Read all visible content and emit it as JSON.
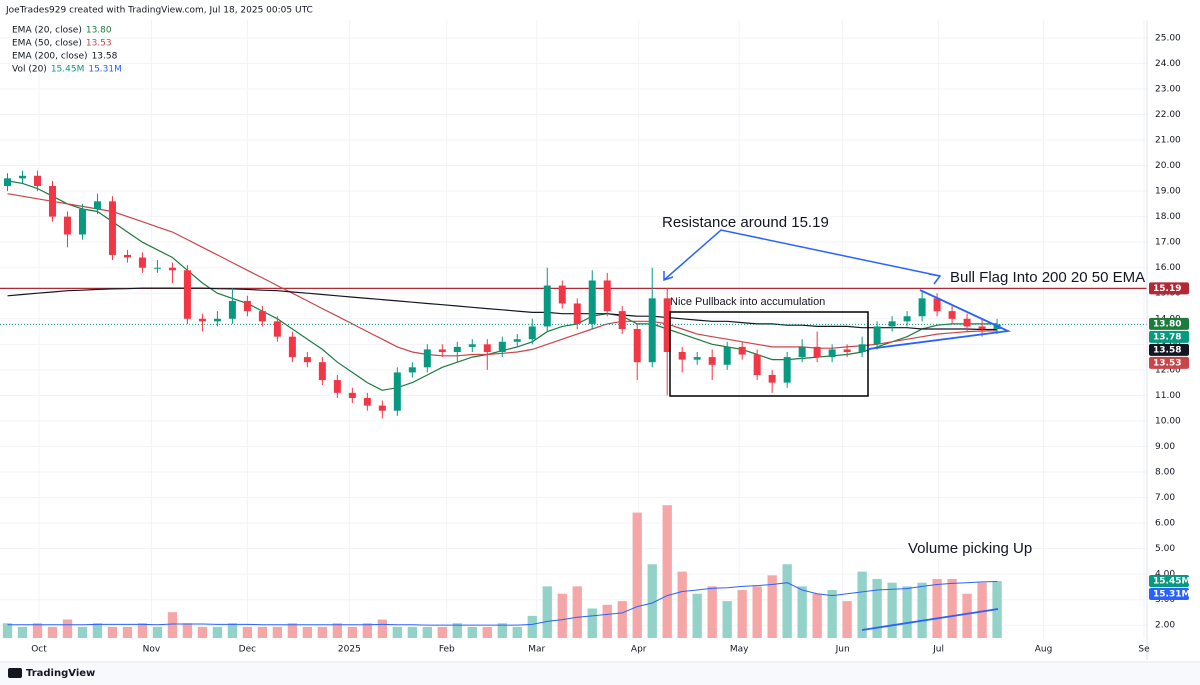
{
  "header": "JoeTrades929 created with TradingView.com, Jul 18, 2025 00:05 UTC",
  "brand": "TradingView",
  "chart_data": {
    "type": "candlestick",
    "xlim": [
      -0.5,
      76
    ],
    "xticks": [
      {
        "value": 2.1,
        "label": "Oct"
      },
      {
        "value": 9.6,
        "label": "Nov"
      },
      {
        "value": 16,
        "label": "Dec"
      },
      {
        "value": 22.8,
        "label": "2025"
      },
      {
        "value": 29.3,
        "label": "Feb"
      },
      {
        "value": 35.3,
        "label": "Mar"
      },
      {
        "value": 42.1,
        "label": "Apr"
      },
      {
        "value": 48.8,
        "label": "May"
      },
      {
        "value": 55.7,
        "label": "Jun"
      },
      {
        "value": 62.1,
        "label": "Jul"
      },
      {
        "value": 69.1,
        "label": "Aug"
      },
      {
        "value": 75.8,
        "label": "Se"
      }
    ],
    "ylim": [
      1.5,
      25.7
    ],
    "yticks": [
      {
        "value": 2,
        "label": "2.00"
      },
      {
        "value": 3,
        "label": "3.00"
      },
      {
        "value": 4,
        "label": "4.00"
      },
      {
        "value": 5,
        "label": "5.00"
      },
      {
        "value": 6,
        "label": "6.00"
      },
      {
        "value": 7,
        "label": "7.00"
      },
      {
        "value": 8,
        "label": "8.00"
      },
      {
        "value": 9,
        "label": "9.00"
      },
      {
        "value": 10,
        "label": "10.00"
      },
      {
        "value": 11,
        "label": "11.00"
      },
      {
        "value": 12,
        "label": "12.00"
      },
      {
        "value": 13,
        "label": "13.00"
      },
      {
        "value": 14,
        "label": "14.00"
      },
      {
        "value": 15,
        "label": "15.00"
      },
      {
        "value": 16,
        "label": "16.00"
      },
      {
        "value": 17,
        "label": "17.00"
      },
      {
        "value": 18,
        "label": "18.00"
      },
      {
        "value": 19,
        "label": "19.00"
      },
      {
        "value": 20,
        "label": "20.00"
      },
      {
        "value": 21,
        "label": "21.00"
      },
      {
        "value": 22,
        "label": "22.00"
      },
      {
        "value": 23,
        "label": "23.00"
      },
      {
        "value": 24,
        "label": "24.00"
      },
      {
        "value": 25,
        "label": "25.00"
      }
    ],
    "grid": true,
    "up_color": "#089981",
    "down_color": "#f23645",
    "open": [
      19.2,
      19.5,
      19.6,
      19.2,
      18.0,
      17.3,
      18.3,
      18.6,
      16.5,
      16.4,
      16.0,
      16.0,
      15.9,
      14.0,
      13.9,
      14.0,
      14.7,
      14.3,
      13.9,
      13.3,
      12.5,
      12.3,
      11.6,
      11.1,
      10.9,
      10.6,
      10.4,
      11.9,
      12.1,
      12.8,
      12.7,
      12.9,
      13.0,
      12.7,
      13.1,
      13.2,
      13.7,
      15.3,
      14.6,
      13.8,
      15.5,
      14.3,
      13.6,
      12.3,
      14.8,
      12.7,
      12.4,
      12.5,
      12.2,
      12.9,
      12.6,
      11.8,
      11.5,
      12.5,
      12.9,
      12.5,
      12.8,
      12.7,
      13.0,
      13.7,
      13.9,
      14.1,
      14.8,
      14.3,
      14.0,
      13.7,
      13.6
    ],
    "high": [
      19.7,
      19.8,
      19.8,
      19.4,
      18.2,
      18.5,
      18.9,
      18.8,
      16.7,
      16.6,
      16.3,
      16.2,
      16.1,
      14.2,
      14.3,
      15.2,
      14.9,
      14.5,
      14.1,
      13.5,
      12.7,
      12.5,
      11.8,
      11.3,
      11.1,
      10.8,
      12.1,
      12.3,
      13.0,
      13.0,
      13.1,
      13.2,
      13.2,
      13.3,
      13.4,
      14.0,
      16.0,
      15.5,
      14.8,
      15.9,
      15.8,
      14.5,
      13.8,
      16.0,
      15.2,
      12.9,
      12.7,
      12.8,
      13.1,
      13.1,
      12.8,
      12.0,
      12.7,
      13.2,
      13.5,
      13.0,
      13.0,
      13.3,
      13.9,
      14.1,
      14.3,
      15.1,
      15.0,
      14.5,
      14.2,
      14.0,
      14.0
    ],
    "low": [
      19.0,
      19.3,
      19.0,
      17.8,
      16.8,
      17.1,
      18.1,
      16.3,
      16.2,
      15.8,
      15.8,
      15.4,
      13.8,
      13.5,
      13.7,
      13.8,
      14.1,
      13.7,
      13.1,
      12.3,
      12.1,
      11.4,
      10.9,
      10.7,
      10.4,
      10.1,
      10.2,
      11.7,
      11.9,
      12.5,
      12.3,
      12.7,
      12.0,
      12.5,
      12.9,
      13.0,
      13.5,
      14.4,
      13.6,
      13.6,
      14.1,
      13.4,
      11.6,
      12.1,
      11.0,
      11.9,
      12.2,
      11.6,
      12.0,
      12.4,
      11.6,
      11.1,
      11.3,
      12.3,
      12.3,
      12.3,
      12.5,
      12.5,
      12.8,
      13.5,
      13.7,
      13.9,
      14.1,
      13.8,
      13.5,
      13.3,
      13.4
    ],
    "close": [
      19.5,
      19.6,
      19.2,
      18.0,
      17.3,
      18.3,
      18.6,
      16.5,
      16.4,
      16.0,
      16.0,
      15.9,
      14.0,
      13.9,
      14.0,
      14.7,
      14.3,
      13.9,
      13.3,
      12.5,
      12.3,
      11.6,
      11.1,
      10.9,
      10.6,
      10.4,
      11.9,
      12.1,
      12.8,
      12.7,
      12.9,
      13.0,
      12.7,
      13.1,
      13.2,
      13.7,
      15.3,
      14.6,
      13.8,
      15.5,
      14.3,
      13.6,
      12.3,
      14.8,
      12.7,
      12.4,
      12.5,
      12.2,
      12.9,
      12.6,
      11.8,
      11.5,
      12.5,
      12.9,
      12.5,
      12.8,
      12.7,
      13.0,
      13.7,
      13.9,
      14.1,
      14.8,
      14.3,
      14.0,
      13.7,
      13.6,
      13.78
    ],
    "price_label": "13.78",
    "series": [
      {
        "name": "EMA (20, close)",
        "color": "#1e7b3c",
        "last_label": "13.80",
        "values": [
          19.4,
          19.3,
          19.1,
          18.8,
          18.5,
          18.3,
          18.2,
          17.8,
          17.4,
          17.0,
          16.7,
          16.4,
          15.9,
          15.4,
          15.0,
          14.8,
          14.6,
          14.3,
          14.0,
          13.6,
          13.2,
          12.8,
          12.3,
          11.9,
          11.5,
          11.2,
          11.3,
          11.5,
          11.8,
          12.1,
          12.3,
          12.5,
          12.6,
          12.75,
          12.9,
          13.1,
          13.5,
          13.7,
          13.8,
          14.1,
          14.2,
          14.1,
          13.8,
          13.8,
          13.6,
          13.4,
          13.2,
          13.0,
          12.9,
          12.8,
          12.6,
          12.4,
          12.4,
          12.45,
          12.5,
          12.55,
          12.6,
          12.7,
          12.9,
          13.1,
          13.3,
          13.6,
          13.75,
          13.8,
          13.8,
          13.8,
          13.8
        ]
      },
      {
        "name": "EMA (50, close)",
        "color": "#c8454a",
        "last_label": "13.53",
        "values": [
          18.9,
          18.8,
          18.7,
          18.6,
          18.5,
          18.4,
          18.3,
          18.2,
          18.0,
          17.8,
          17.6,
          17.4,
          17.1,
          16.8,
          16.5,
          16.2,
          15.9,
          15.6,
          15.3,
          15.0,
          14.7,
          14.4,
          14.1,
          13.8,
          13.5,
          13.2,
          12.9,
          12.7,
          12.6,
          12.55,
          12.55,
          12.6,
          12.6,
          12.65,
          12.7,
          12.8,
          13.0,
          13.2,
          13.4,
          13.6,
          13.8,
          13.9,
          13.9,
          13.9,
          13.8,
          13.6,
          13.4,
          13.3,
          13.2,
          13.1,
          13.0,
          12.9,
          12.9,
          12.9,
          12.85,
          12.85,
          12.9,
          12.95,
          13.0,
          13.1,
          13.2,
          13.3,
          13.4,
          13.45,
          13.5,
          13.52,
          13.53
        ]
      },
      {
        "name": "EMA (200, close)",
        "color": "#131722",
        "last_label": "13.58",
        "values": [
          14.9,
          14.95,
          15.0,
          15.05,
          15.1,
          15.12,
          15.15,
          15.17,
          15.18,
          15.2,
          15.2,
          15.2,
          15.2,
          15.2,
          15.18,
          15.17,
          15.15,
          15.12,
          15.1,
          15.05,
          15.0,
          14.95,
          14.9,
          14.85,
          14.8,
          14.75,
          14.7,
          14.65,
          14.6,
          14.55,
          14.5,
          14.45,
          14.4,
          14.35,
          14.3,
          14.25,
          14.25,
          14.2,
          14.2,
          14.2,
          14.2,
          14.15,
          14.1,
          14.1,
          14.05,
          14.0,
          13.95,
          13.9,
          13.9,
          13.85,
          13.8,
          13.8,
          13.75,
          13.75,
          13.7,
          13.7,
          13.7,
          13.65,
          13.65,
          13.65,
          13.65,
          13.6,
          13.6,
          13.6,
          13.6,
          13.58,
          13.58
        ]
      }
    ],
    "volume": {
      "name": "Vol (20)",
      "ylim": [
        0,
        45
      ],
      "up_color": "#92d2c8",
      "down_color": "#f5a6a6",
      "last_label": "15.45M",
      "values": [
        4,
        3,
        4,
        3,
        5,
        3,
        4,
        3,
        3,
        4,
        3,
        7,
        4,
        3,
        3,
        4,
        3,
        3,
        3,
        4,
        3,
        3,
        4,
        3,
        4,
        5,
        3,
        3,
        3,
        3,
        4,
        3,
        3,
        4,
        3,
        6,
        14,
        12,
        14,
        8,
        9,
        10,
        34,
        20,
        36,
        18,
        12,
        14,
        10,
        13,
        14,
        17,
        20,
        14,
        12,
        13,
        10,
        18,
        16,
        15,
        14,
        15,
        16,
        16,
        12,
        15,
        15.45
      ],
      "ma": {
        "color": "#2962ff",
        "last_label": "15.31M",
        "values": [
          3.6,
          3.6,
          3.6,
          3.6,
          3.6,
          3.6,
          3.7,
          3.7,
          3.7,
          3.7,
          3.6,
          3.8,
          3.8,
          3.8,
          3.7,
          3.7,
          3.7,
          3.6,
          3.6,
          3.6,
          3.6,
          3.6,
          3.6,
          3.6,
          3.6,
          3.7,
          3.6,
          3.6,
          3.5,
          3.5,
          3.5,
          3.5,
          3.5,
          3.5,
          3.5,
          3.7,
          4.5,
          5.0,
          5.6,
          6.0,
          6.4,
          6.8,
          8.5,
          9.5,
          11.5,
          12.6,
          13.0,
          13.5,
          13.6,
          14.0,
          14.2,
          14.5,
          15.0,
          13.0,
          12.0,
          11.5,
          12.0,
          12.5,
          13.0,
          13.2,
          13.4,
          14.0,
          14.5,
          14.8,
          15.0,
          15.2,
          15.31
        ]
      }
    },
    "resistance": {
      "value": 15.19,
      "label": "15.19",
      "color": "#b22833"
    },
    "annotations": [
      "Resistance around 15.19",
      "Nice Pullback into accumulation",
      "Bull Flag Into 200 20 50 EMA",
      "Volume picking Up"
    ]
  }
}
